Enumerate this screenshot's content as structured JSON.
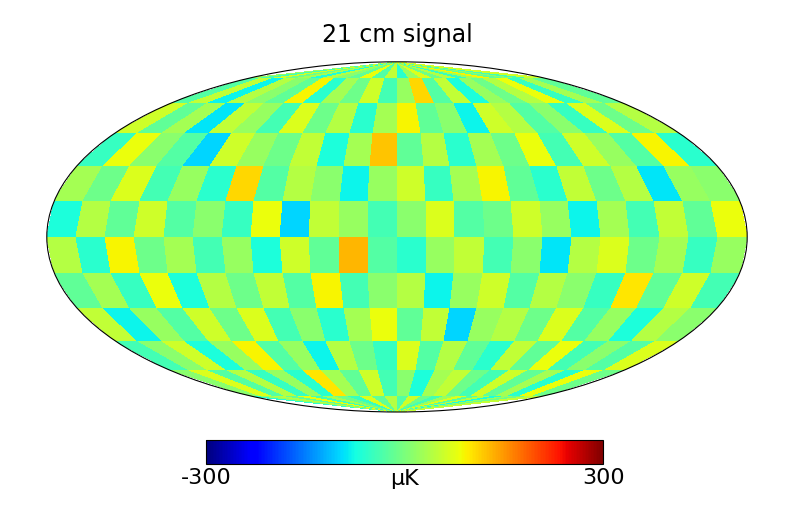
{
  "chart_data": {
    "type": "heatmap",
    "title": "21 cm signal",
    "tick_labels": false,
    "colorbar_label": "μK",
    "colorbar_range": [
      -300,
      300
    ],
    "colorbar_ticks": [
      -300,
      300
    ],
    "cells": [
      [
        20,
        -40,
        60,
        -10,
        30,
        -70,
        40,
        10,
        -20,
        80,
        -30,
        50,
        -60,
        20,
        70,
        -10,
        40,
        -50,
        30,
        90,
        -20,
        10,
        -40,
        60
      ],
      [
        -30,
        50,
        -80,
        40,
        10,
        -20,
        90,
        -60,
        30,
        -10,
        60,
        -40,
        20,
        110,
        -30,
        50,
        -70,
        20,
        -10,
        40,
        80,
        -50,
        30,
        -20
      ],
      [
        60,
        -20,
        30,
        -90,
        50,
        20,
        -40,
        70,
        -10,
        40,
        -60,
        30,
        90,
        -20,
        10,
        -80,
        60,
        40,
        -30,
        10,
        -50,
        70,
        -10,
        40
      ],
      [
        -50,
        80,
        10,
        -30,
        -100,
        60,
        20,
        -10,
        50,
        -70,
        30,
        120,
        -20,
        40,
        -60,
        30,
        -10,
        80,
        -40,
        60,
        20,
        -30,
        90,
        -60
      ],
      [
        30,
        -10,
        70,
        -40,
        20,
        -60,
        110,
        -30,
        40,
        10,
        -80,
        20,
        60,
        -50,
        30,
        90,
        -20,
        -60,
        50,
        -10,
        40,
        -90,
        20,
        10
      ],
      [
        -70,
        40,
        -20,
        60,
        -30,
        10,
        -50,
        80,
        -100,
        50,
        20,
        -40,
        10,
        70,
        -30,
        -10,
        60,
        20,
        -80,
        30,
        -40,
        50,
        -20,
        80
      ],
      [
        40,
        -60,
        90,
        -10,
        30,
        -40,
        20,
        -70,
        60,
        -20,
        130,
        -30,
        -60,
        20,
        50,
        -40,
        10,
        -90,
        40,
        70,
        -10,
        30,
        -50,
        20
      ],
      [
        -20,
        30,
        -50,
        80,
        -70,
        40,
        -10,
        50,
        -30,
        90,
        -40,
        10,
        40,
        -80,
        20,
        60,
        -30,
        40,
        10,
        -50,
        100,
        -20,
        60,
        -40
      ],
      [
        50,
        -80,
        20,
        -30,
        60,
        -10,
        70,
        -40,
        10,
        -60,
        30,
        80,
        -20,
        50,
        -100,
        20,
        40,
        -10,
        70,
        -30,
        20,
        -70,
        40,
        10
      ],
      [
        -40,
        10,
        60,
        -70,
        20,
        90,
        -30,
        20,
        -80,
        40,
        -10,
        -50,
        70,
        -30,
        40,
        -20,
        -60,
        50,
        -20,
        80,
        -40,
        10,
        -30,
        70
      ],
      [
        10,
        70,
        -30,
        40,
        -50,
        20,
        -60,
        100,
        30,
        -20,
        60,
        -40,
        10,
        -70,
        30,
        50,
        -10,
        -40,
        60,
        -20,
        30,
        -60,
        80,
        -10
      ],
      [
        -60,
        20,
        40,
        -20,
        80,
        -40,
        30,
        -10,
        -50,
        70,
        -20,
        40,
        -30,
        60,
        -10,
        -40,
        20,
        70,
        -30,
        40,
        -70,
        20,
        -10,
        50
      ]
    ]
  }
}
